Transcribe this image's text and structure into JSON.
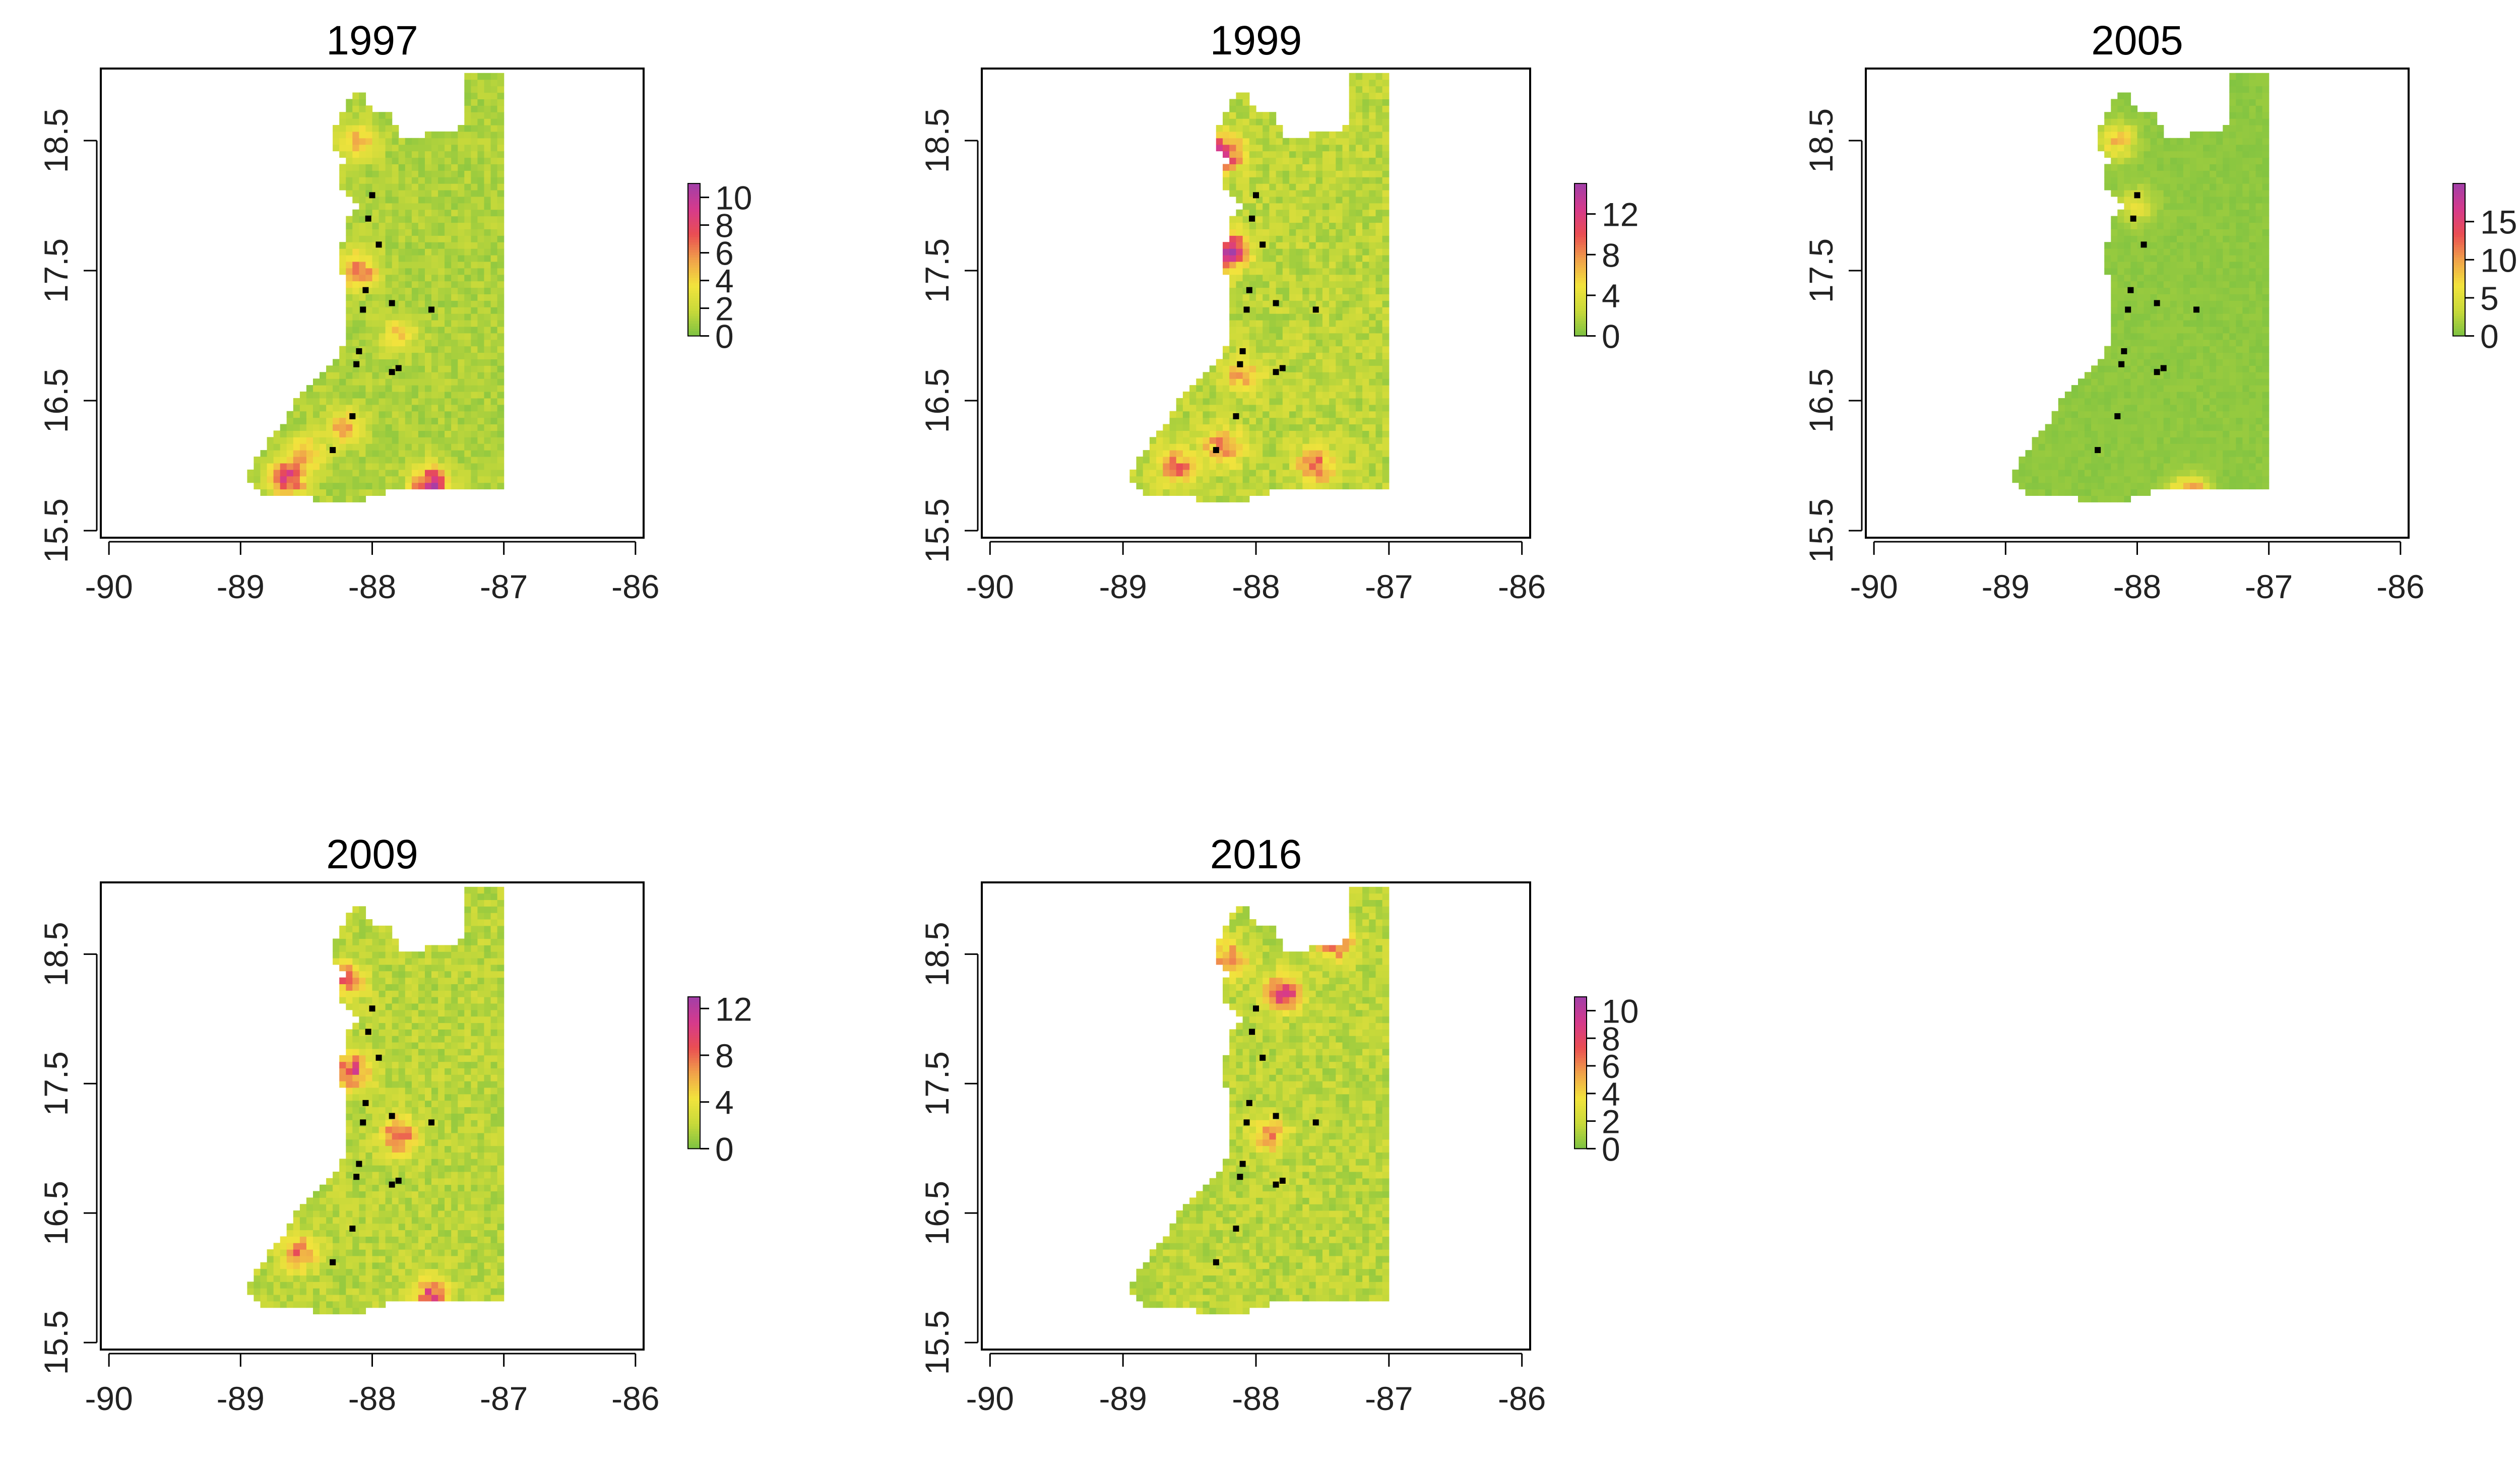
{
  "figure": {
    "title": ""
  },
  "chart_data": [
    {
      "type": "heatmap",
      "title": "1997",
      "xlabel": "",
      "ylabel": "",
      "xlim": [
        -90,
        -86
      ],
      "ylim": [
        15.5,
        19
      ],
      "x_ticks": [
        -90,
        -89,
        -88,
        -87,
        -86
      ],
      "y_ticks": [
        15.5,
        16.5,
        17.5,
        18.5
      ],
      "x_tick_labels": [
        "-90",
        "-89",
        "-88",
        "-87",
        "-86"
      ],
      "y_tick_labels": [
        "15.5",
        "16.5",
        "17.5",
        "18.5"
      ],
      "colorbar": {
        "min": 0,
        "max": 11,
        "ticks": [
          0,
          2,
          4,
          6,
          8,
          10
        ],
        "tick_labels": [
          "0",
          "2",
          "4",
          "6",
          "8",
          "10"
        ]
      },
      "color_scale": [
        "#7cc242",
        "#c8d93a",
        "#f2e33c",
        "#f0a24a",
        "#ea4e52",
        "#d63a8c",
        "#a23fa8"
      ],
      "background_value": 1.2,
      "hotspots": [
        {
          "lon": -88.65,
          "lat": 15.9,
          "value": 8
        },
        {
          "lon": -88.5,
          "lat": 16.1,
          "value": 4
        },
        {
          "lon": -88.1,
          "lat": 17.5,
          "value": 6
        },
        {
          "lon": -88.1,
          "lat": 18.5,
          "value": 4
        },
        {
          "lon": -88.2,
          "lat": 16.3,
          "value": 4.5
        },
        {
          "lon": -87.55,
          "lat": 15.85,
          "value": 9
        },
        {
          "lon": -87.8,
          "lat": 17.0,
          "value": 2.8
        }
      ],
      "points": [
        [
          -88.0,
          18.08
        ],
        [
          -88.03,
          17.9
        ],
        [
          -87.95,
          17.7
        ],
        [
          -88.05,
          17.35
        ],
        [
          -88.07,
          17.2
        ],
        [
          -87.85,
          17.25
        ],
        [
          -87.55,
          17.2
        ],
        [
          -88.1,
          16.88
        ],
        [
          -88.12,
          16.78
        ],
        [
          -87.85,
          16.72
        ],
        [
          -87.8,
          16.75
        ],
        [
          -88.15,
          16.38
        ],
        [
          -88.3,
          16.12
        ]
      ]
    },
    {
      "type": "heatmap",
      "title": "1999",
      "xlabel": "",
      "ylabel": "",
      "xlim": [
        -90,
        -86
      ],
      "ylim": [
        15.5,
        19
      ],
      "x_ticks": [
        -90,
        -89,
        -88,
        -87,
        -86
      ],
      "y_ticks": [
        15.5,
        16.5,
        17.5,
        18.5
      ],
      "x_tick_labels": [
        "-90",
        "-89",
        "-88",
        "-87",
        "-86"
      ],
      "y_tick_labels": [
        "15.5",
        "16.5",
        "17.5",
        "18.5"
      ],
      "colorbar": {
        "min": 0,
        "max": 15,
        "ticks": [
          0,
          4,
          8,
          12
        ],
        "tick_labels": [
          "0",
          "4",
          "8",
          "12"
        ]
      },
      "color_scale": [
        "#7cc242",
        "#c8d93a",
        "#f2e33c",
        "#f0a24a",
        "#ea4e52",
        "#d63a8c",
        "#a23fa8"
      ],
      "background_value": 2.2,
      "hotspots": [
        {
          "lon": -88.25,
          "lat": 18.4,
          "value": 11
        },
        {
          "lon": -88.2,
          "lat": 17.65,
          "value": 12
        },
        {
          "lon": -88.6,
          "lat": 16.0,
          "value": 7
        },
        {
          "lon": -87.55,
          "lat": 16.0,
          "value": 7
        },
        {
          "lon": -88.1,
          "lat": 16.7,
          "value": 6
        },
        {
          "lon": -88.25,
          "lat": 16.15,
          "value": 8
        }
      ],
      "points": [
        [
          -88.0,
          18.08
        ],
        [
          -88.03,
          17.9
        ],
        [
          -87.95,
          17.7
        ],
        [
          -88.05,
          17.35
        ],
        [
          -88.07,
          17.2
        ],
        [
          -87.85,
          17.25
        ],
        [
          -87.55,
          17.2
        ],
        [
          -88.1,
          16.88
        ],
        [
          -88.12,
          16.78
        ],
        [
          -87.85,
          16.72
        ],
        [
          -87.8,
          16.75
        ],
        [
          -88.15,
          16.38
        ],
        [
          -88.3,
          16.12
        ]
      ]
    },
    {
      "type": "heatmap",
      "title": "2005",
      "xlabel": "",
      "ylabel": "",
      "xlim": [
        -90,
        -86
      ],
      "ylim": [
        15.5,
        19
      ],
      "x_ticks": [
        -90,
        -89,
        -88,
        -87,
        -86
      ],
      "y_ticks": [
        15.5,
        16.5,
        17.5,
        18.5
      ],
      "x_tick_labels": [
        "-90",
        "-89",
        "-88",
        "-87",
        "-86"
      ],
      "y_tick_labels": [
        "15.5",
        "16.5",
        "17.5",
        "18.5"
      ],
      "colorbar": {
        "min": 0,
        "max": 20,
        "ticks": [
          0,
          5,
          10,
          15
        ],
        "tick_labels": [
          "0",
          "5",
          "10",
          "15"
        ]
      },
      "color_scale": [
        "#7cc242",
        "#c8d93a",
        "#f2e33c",
        "#f0a24a",
        "#ea4e52",
        "#d63a8c",
        "#a23fa8"
      ],
      "background_value": 0.8,
      "hotspots": [
        {
          "lon": -88.15,
          "lat": 18.5,
          "value": 8
        },
        {
          "lon": -88.0,
          "lat": 18.0,
          "value": 5
        },
        {
          "lon": -87.6,
          "lat": 15.75,
          "value": 17
        }
      ],
      "points": [
        [
          -88.0,
          18.08
        ],
        [
          -88.03,
          17.9
        ],
        [
          -87.95,
          17.7
        ],
        [
          -88.05,
          17.35
        ],
        [
          -88.07,
          17.2
        ],
        [
          -87.85,
          17.25
        ],
        [
          -87.55,
          17.2
        ],
        [
          -88.1,
          16.88
        ],
        [
          -88.12,
          16.78
        ],
        [
          -87.85,
          16.72
        ],
        [
          -87.8,
          16.75
        ],
        [
          -88.15,
          16.38
        ],
        [
          -88.3,
          16.12
        ]
      ]
    },
    {
      "type": "heatmap",
      "title": "2009",
      "xlabel": "",
      "ylabel": "",
      "xlim": [
        -90,
        -86
      ],
      "ylim": [
        15.5,
        19
      ],
      "x_ticks": [
        -90,
        -89,
        -88,
        -87,
        -86
      ],
      "y_ticks": [
        15.5,
        16.5,
        17.5,
        18.5
      ],
      "x_tick_labels": [
        "-90",
        "-89",
        "-88",
        "-87",
        "-86"
      ],
      "y_tick_labels": [
        "15.5",
        "16.5",
        "17.5",
        "18.5"
      ],
      "colorbar": {
        "min": 0,
        "max": 13,
        "ticks": [
          0,
          4,
          8,
          12
        ],
        "tick_labels": [
          "0",
          "4",
          "8",
          "12"
        ]
      },
      "color_scale": [
        "#7cc242",
        "#c8d93a",
        "#f2e33c",
        "#f0a24a",
        "#ea4e52",
        "#d63a8c",
        "#a23fa8"
      ],
      "background_value": 1.8,
      "hotspots": [
        {
          "lon": -88.2,
          "lat": 18.3,
          "value": 7
        },
        {
          "lon": -88.15,
          "lat": 17.6,
          "value": 8
        },
        {
          "lon": -87.8,
          "lat": 17.1,
          "value": 7
        },
        {
          "lon": -88.55,
          "lat": 16.2,
          "value": 6
        },
        {
          "lon": -87.55,
          "lat": 15.85,
          "value": 8
        }
      ],
      "points": [
        [
          -88.0,
          18.08
        ],
        [
          -88.03,
          17.9
        ],
        [
          -87.95,
          17.7
        ],
        [
          -88.05,
          17.35
        ],
        [
          -88.07,
          17.2
        ],
        [
          -87.85,
          17.25
        ],
        [
          -87.55,
          17.2
        ],
        [
          -88.1,
          16.88
        ],
        [
          -88.12,
          16.78
        ],
        [
          -87.85,
          16.72
        ],
        [
          -87.8,
          16.75
        ],
        [
          -88.15,
          16.38
        ],
        [
          -88.3,
          16.12
        ]
      ]
    },
    {
      "type": "heatmap",
      "title": "2016",
      "xlabel": "",
      "ylabel": "",
      "xlim": [
        -90,
        -86
      ],
      "ylim": [
        15.5,
        19
      ],
      "x_ticks": [
        -90,
        -89,
        -88,
        -87,
        -86
      ],
      "y_ticks": [
        15.5,
        16.5,
        17.5,
        18.5
      ],
      "x_tick_labels": [
        "-90",
        "-89",
        "-88",
        "-87",
        "-86"
      ],
      "y_tick_labels": [
        "15.5",
        "16.5",
        "17.5",
        "18.5"
      ],
      "colorbar": {
        "min": 0,
        "max": 11,
        "ticks": [
          0,
          2,
          4,
          6,
          8,
          10
        ],
        "tick_labels": [
          "0",
          "2",
          "4",
          "6",
          "8",
          "10"
        ]
      },
      "color_scale": [
        "#7cc242",
        "#c8d93a",
        "#f2e33c",
        "#f0a24a",
        "#ea4e52",
        "#d63a8c",
        "#a23fa8"
      ],
      "background_value": 1.6,
      "hotspots": [
        {
          "lon": -87.4,
          "lat": 18.6,
          "value": 6
        },
        {
          "lon": -87.8,
          "lat": 18.2,
          "value": 7
        },
        {
          "lon": -88.2,
          "lat": 18.45,
          "value": 5
        },
        {
          "lon": -87.9,
          "lat": 17.1,
          "value": 4
        }
      ],
      "points": [
        [
          -88.0,
          18.08
        ],
        [
          -88.03,
          17.9
        ],
        [
          -87.95,
          17.7
        ],
        [
          -88.05,
          17.35
        ],
        [
          -88.07,
          17.2
        ],
        [
          -87.85,
          17.25
        ],
        [
          -87.55,
          17.2
        ],
        [
          -88.1,
          16.88
        ],
        [
          -88.12,
          16.78
        ],
        [
          -87.85,
          16.72
        ],
        [
          -87.8,
          16.75
        ],
        [
          -88.15,
          16.38
        ],
        [
          -88.3,
          16.12
        ]
      ]
    }
  ]
}
